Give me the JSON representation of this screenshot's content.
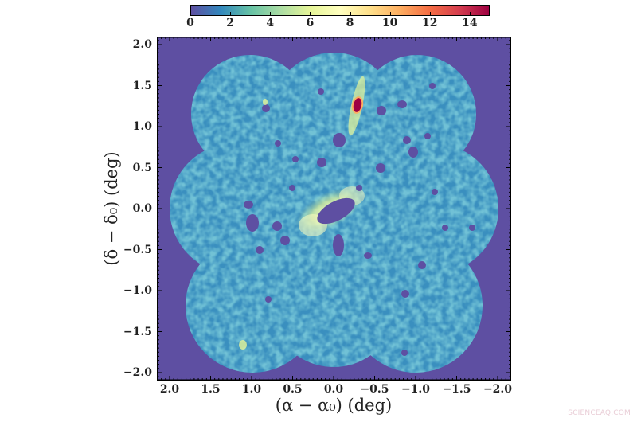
{
  "chart_data": {
    "type": "heatmap",
    "title": "",
    "xlabel": "(α − α₀) (deg)",
    "ylabel": "(δ − δ₀) (deg)",
    "xlim": [
      2.1,
      -2.1
    ],
    "ylim": [
      -2.1,
      2.1
    ],
    "x_ticks": [
      "2.0",
      "1.5",
      "1.0",
      "0.5",
      "0.0",
      "−0.5",
      "−1.0",
      "−1.5",
      "−2.0"
    ],
    "y_ticks": [
      "2.0",
      "1.5",
      "1.0",
      "0.5",
      "0.0",
      "−0.5",
      "−1.0",
      "−1.5",
      "−2.0"
    ],
    "colorbar": {
      "position": "top",
      "range": [
        0,
        15
      ],
      "ticks": [
        "0",
        "2",
        "4",
        "6",
        "8",
        "10",
        "12",
        "14"
      ],
      "colormap": "Spectral_r",
      "colors": [
        "#5e4fa2",
        "#3288bd",
        "#66c2a5",
        "#abdda4",
        "#e6f598",
        "#ffffbf",
        "#fee08b",
        "#fdae61",
        "#f46d43",
        "#d53e4f",
        "#9e0142"
      ]
    },
    "background_color": "#5e4fa2",
    "field_shape": "six-lobed flower mosaic of overlapping circular fields centered on (0,0), extent approx ±1.95 deg",
    "features": [
      {
        "name": "central masked ellipse",
        "x": 0.0,
        "y": 0.0,
        "value": "masked",
        "rim_value": 7
      },
      {
        "name": "bright compact source",
        "x": -0.25,
        "y": 1.28,
        "value": 15
      },
      {
        "name": "bright streak",
        "x": -0.25,
        "y": 1.2,
        "value": 7
      }
    ],
    "typical_value_range": [
      1,
      6
    ]
  },
  "watermark": "SCIENCEAQ.COM"
}
